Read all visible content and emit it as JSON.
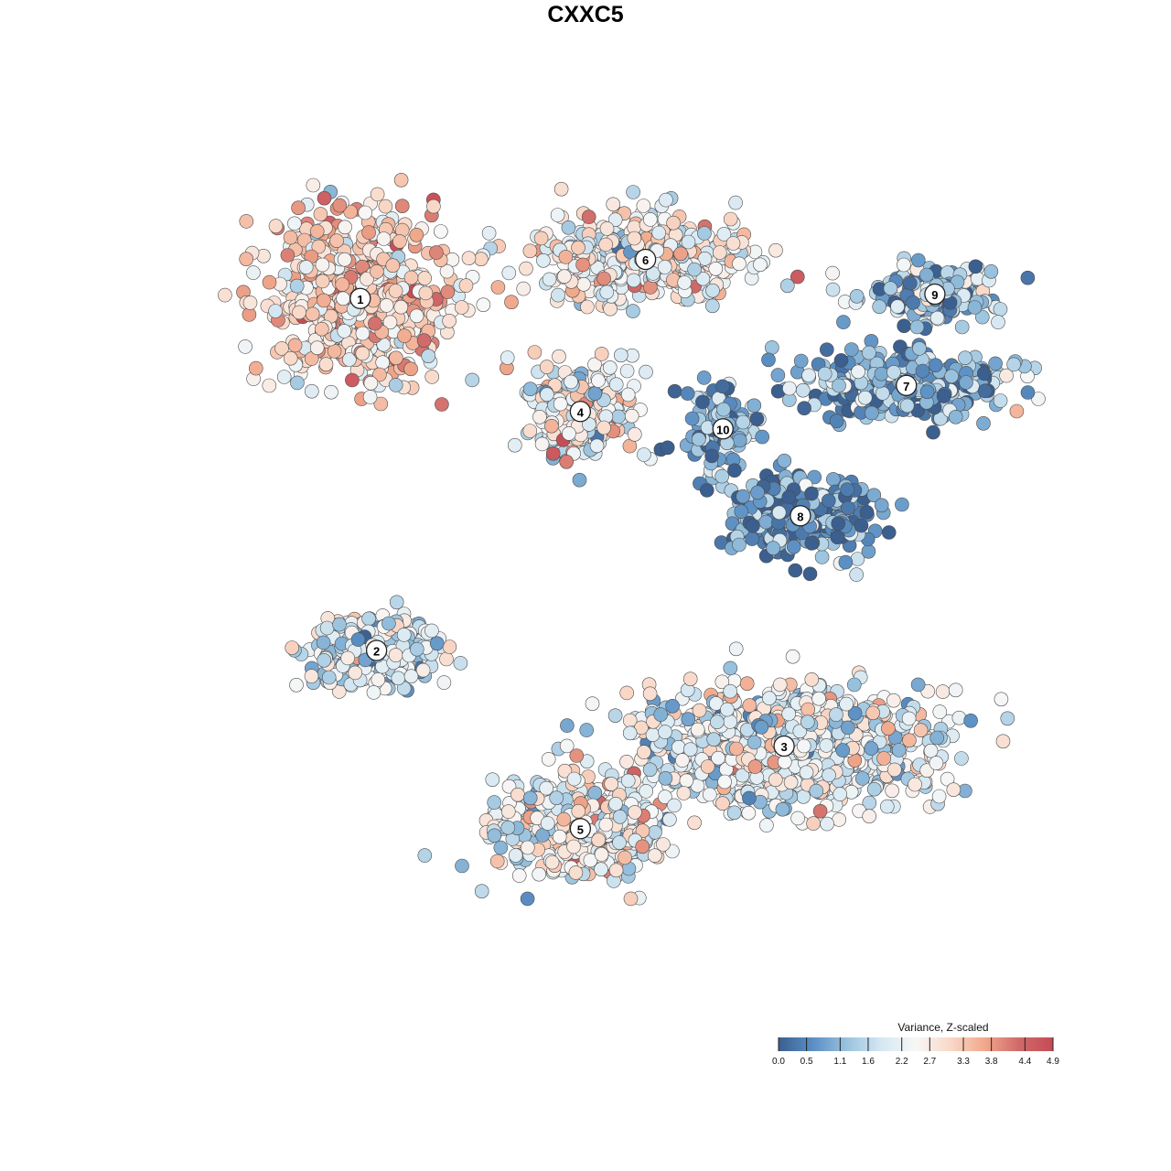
{
  "chart_data": {
    "type": "scatter",
    "title": "CXXC5",
    "xlabel": "",
    "ylabel": "",
    "grid": false,
    "axes_visible": false,
    "color_scale": {
      "title": "Variance, Z-scaled",
      "min": 0.0,
      "max": 4.9,
      "ticks": [
        "0.0",
        "0.5",
        "1.1",
        "1.6",
        "2.2",
        "2.7",
        "3.3",
        "3.8",
        "4.4",
        "4.9"
      ],
      "palette": [
        "#3b5f8f",
        "#5a8fc4",
        "#9ac3de",
        "#d6e8f2",
        "#f7f7f7",
        "#f9d9c8",
        "#f1a98c",
        "#d06a6a",
        "#c54b55"
      ]
    },
    "clusters": [
      {
        "label": "1",
        "x": -6.2,
        "y": 6.5,
        "spread": [
          2.1,
          1.7
        ],
        "mean_value": 2.95,
        "n": 620
      },
      {
        "label": "6",
        "x": 0.8,
        "y": 7.4,
        "spread": [
          2.4,
          0.9
        ],
        "mean_value": 2.55,
        "n": 430
      },
      {
        "label": "4",
        "x": -0.8,
        "y": 3.9,
        "spread": [
          1.2,
          1.0
        ],
        "mean_value": 2.25,
        "n": 260
      },
      {
        "label": "10",
        "x": 2.7,
        "y": 3.5,
        "spread": [
          0.8,
          0.9
        ],
        "mean_value": 0.9,
        "n": 110
      },
      {
        "label": "9",
        "x": 7.9,
        "y": 6.6,
        "spread": [
          1.5,
          0.6
        ],
        "mean_value": 1.25,
        "n": 170
      },
      {
        "label": "7",
        "x": 7.2,
        "y": 4.5,
        "spread": [
          2.3,
          0.7
        ],
        "mean_value": 1.1,
        "n": 320
      },
      {
        "label": "8",
        "x": 4.6,
        "y": 1.5,
        "spread": [
          1.6,
          0.9
        ],
        "mean_value": 0.55,
        "n": 280
      },
      {
        "label": "2",
        "x": -5.8,
        "y": -1.6,
        "spread": [
          1.4,
          0.8
        ],
        "mean_value": 1.9,
        "n": 330
      },
      {
        "label": "3",
        "x": 4.2,
        "y": -3.8,
        "spread": [
          3.3,
          1.2
        ],
        "mean_value": 2.15,
        "n": 900
      },
      {
        "label": "5",
        "x": -0.8,
        "y": -5.7,
        "spread": [
          1.9,
          1.0
        ],
        "mean_value": 2.35,
        "n": 520
      }
    ],
    "x_range": [
      -11,
      11
    ],
    "y_range": [
      -10,
      10
    ]
  }
}
